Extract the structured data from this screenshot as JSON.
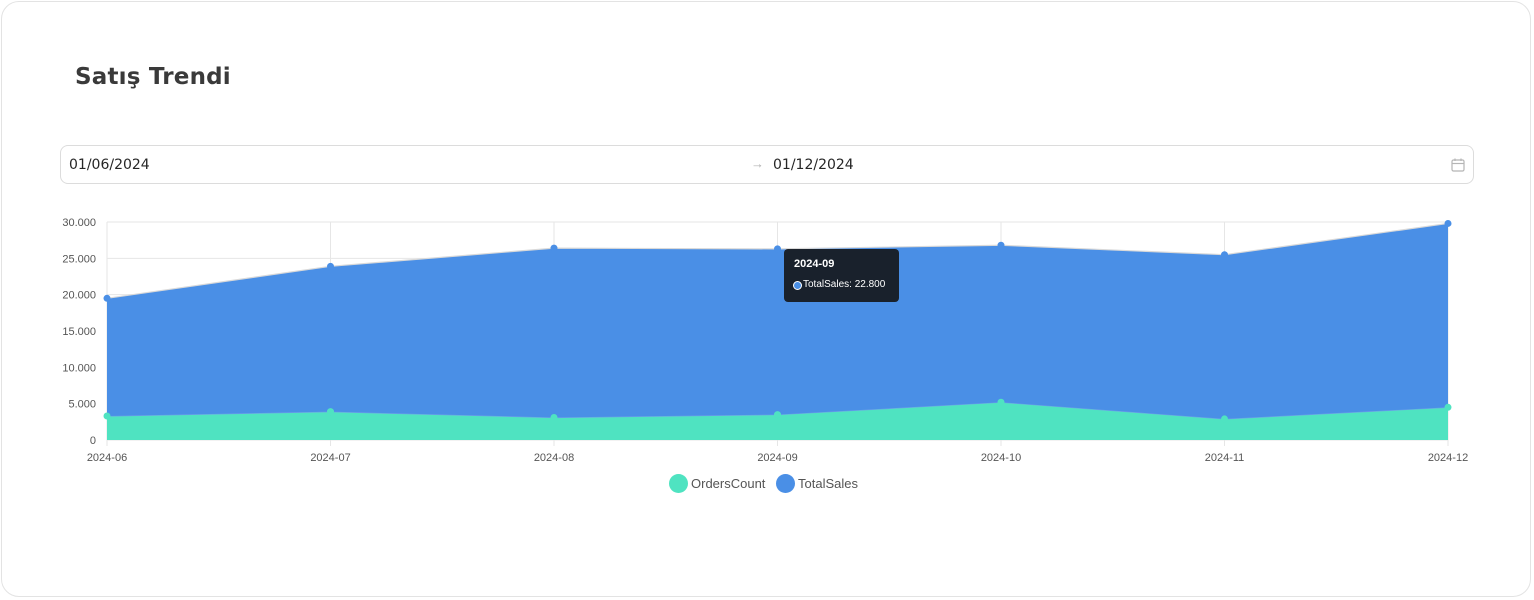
{
  "header": {
    "title": "Satış Trendi"
  },
  "date_range": {
    "start": "01/06/2024",
    "end": "01/12/2024",
    "separator": "→"
  },
  "tooltip": {
    "title": "2024-09",
    "series": "TotalSales",
    "value": "22.800",
    "text": "TotalSales: 22.800"
  },
  "legend": {
    "items": [
      "OrdersCount",
      "TotalSales"
    ]
  },
  "colors": {
    "orders": "#4fe3c1",
    "sales": "#4a8fe6",
    "grid": "#e6e6e6"
  },
  "chart_data": {
    "type": "area",
    "stacked": true,
    "categories": [
      "2024-06",
      "2024-07",
      "2024-08",
      "2024-09",
      "2024-10",
      "2024-11",
      "2024-12"
    ],
    "series": [
      {
        "name": "OrdersCount",
        "values": [
          3300,
          3900,
          3100,
          3500,
          5200,
          2900,
          4500
        ]
      },
      {
        "name": "TotalSales",
        "values": [
          16200,
          20000,
          23300,
          22800,
          21600,
          22600,
          25300
        ]
      }
    ],
    "y_tick_labels": [
      "0",
      "5.000",
      "10.000",
      "15.000",
      "20.000",
      "25.000",
      "30.000"
    ],
    "ylim": [
      0,
      30000
    ],
    "grid": true,
    "legend_position": "bottom"
  }
}
